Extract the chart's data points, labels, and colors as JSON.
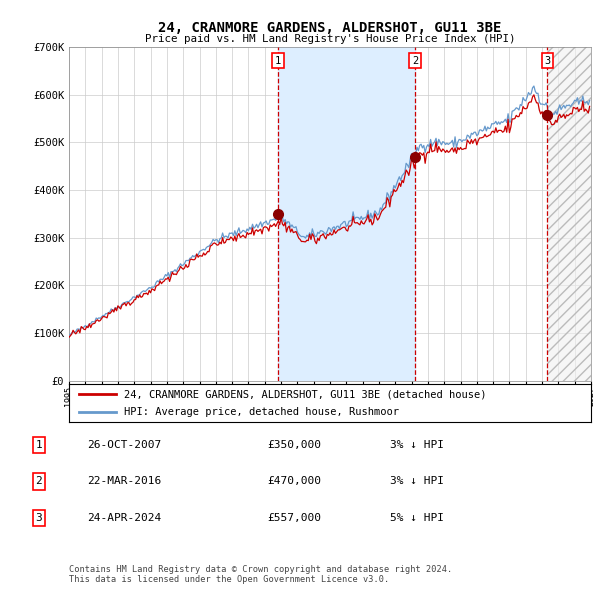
{
  "title": "24, CRANMORE GARDENS, ALDERSHOT, GU11 3BE",
  "subtitle": "Price paid vs. HM Land Registry's House Price Index (HPI)",
  "ylim": [
    0,
    700000
  ],
  "yticks": [
    0,
    100000,
    200000,
    300000,
    400000,
    500000,
    600000,
    700000
  ],
  "ytick_labels": [
    "£0",
    "£100K",
    "£200K",
    "£300K",
    "£400K",
    "£500K",
    "£600K",
    "£700K"
  ],
  "year_start": 1995,
  "year_end": 2027,
  "transactions": [
    {
      "num": 1,
      "date": "26-OCT-2007",
      "price": 350000,
      "pct": "3%",
      "direction": "↓",
      "year_dec": 2007.82
    },
    {
      "num": 2,
      "date": "22-MAR-2016",
      "price": 470000,
      "pct": "3%",
      "direction": "↓",
      "year_dec": 2016.22
    },
    {
      "num": 3,
      "date": "24-APR-2024",
      "price": 557000,
      "pct": "5%",
      "direction": "↓",
      "year_dec": 2024.32
    }
  ],
  "legend_house_label": "24, CRANMORE GARDENS, ALDERSHOT, GU11 3BE (detached house)",
  "legend_hpi_label": "HPI: Average price, detached house, Rushmoor",
  "hpi_color": "#6699cc",
  "house_color": "#cc0000",
  "marker_color": "#8b0000",
  "vline_color": "#cc0000",
  "shading_color": "#ddeeff",
  "grid_color": "#cccccc",
  "background_color": "#ffffff",
  "footer": "Contains HM Land Registry data © Crown copyright and database right 2024.\nThis data is licensed under the Open Government Licence v3.0."
}
